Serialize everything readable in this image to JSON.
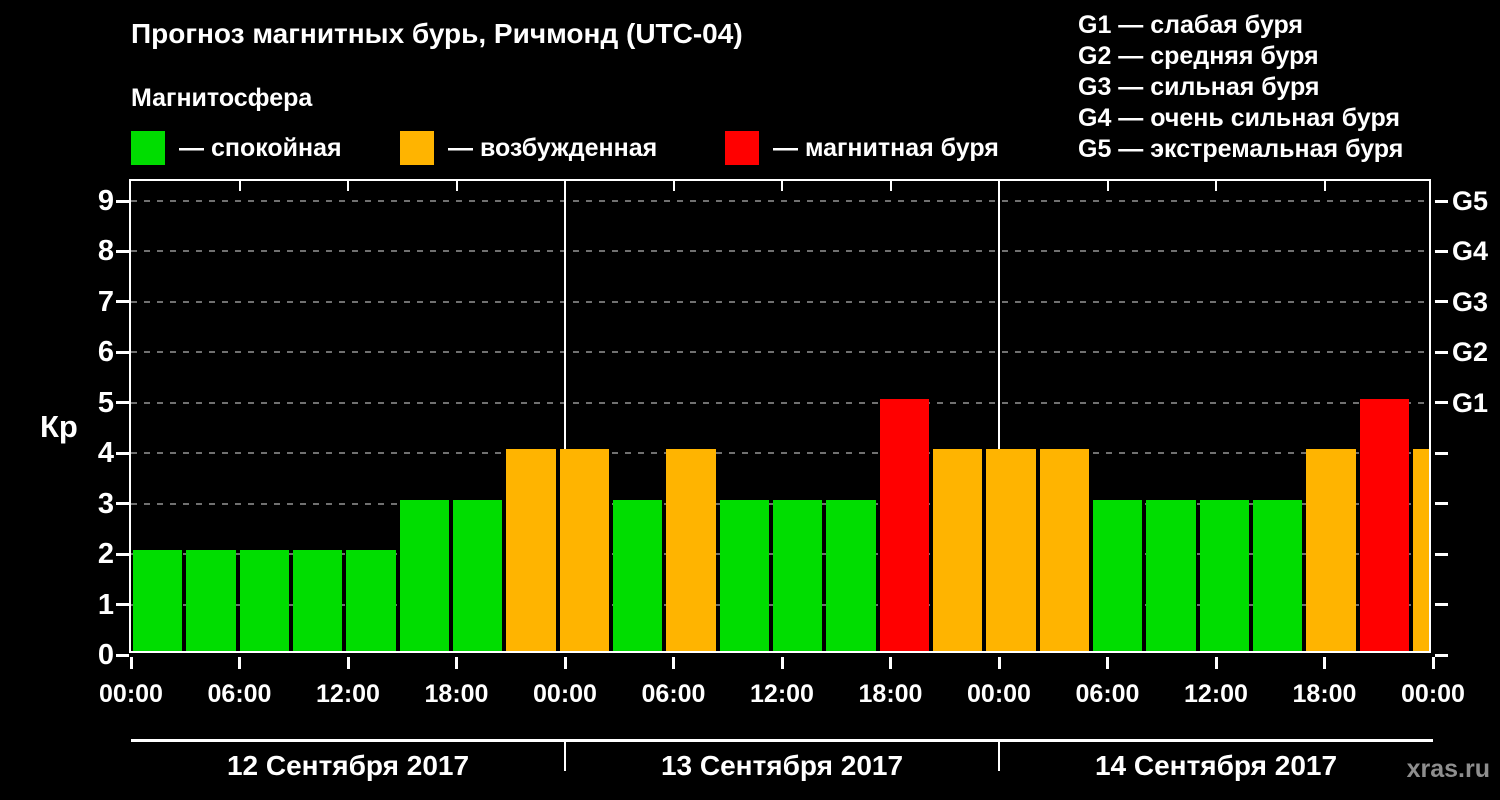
{
  "header": {
    "title": "Прогноз магнитных бурь, Ричмонд (UTC-04)",
    "subtitle": "Магнитосфера"
  },
  "legend": [
    {
      "name": "calm",
      "label": "— спокойная",
      "color": "#00dd00"
    },
    {
      "name": "excited",
      "label": "— возбужденная",
      "color": "#ffb400"
    },
    {
      "name": "storm",
      "label": "— магнитная буря",
      "color": "#ff0000"
    }
  ],
  "storm_scale_legend": [
    "G1 — слабая буря",
    "G2 — средняя буря",
    "G3 — сильная буря",
    "G4 — очень сильная буря",
    "G5 — экстремальная буря"
  ],
  "watermark": "xras.ru",
  "chart_data": {
    "type": "bar",
    "title": "Прогноз магнитных бурь, Ричмонд (UTC-04)",
    "ylabel": "Кр",
    "ylim": [
      0,
      9
    ],
    "yticks": [
      0,
      1,
      2,
      3,
      4,
      5,
      6,
      7,
      8,
      9
    ],
    "right_axis": [
      {
        "value": 5,
        "label": "G1"
      },
      {
        "value": 6,
        "label": "G2"
      },
      {
        "value": 7,
        "label": "G3"
      },
      {
        "value": 8,
        "label": "G4"
      },
      {
        "value": 9,
        "label": "G5"
      }
    ],
    "x_hours_range": [
      0,
      72
    ],
    "x_tick_interval_hours": 6,
    "x_tick_labels": [
      "00:00",
      "06:00",
      "12:00",
      "18:00",
      "00:00",
      "06:00",
      "12:00",
      "18:00",
      "00:00",
      "06:00",
      "12:00",
      "18:00",
      "00:00"
    ],
    "bar_interval_hours": 3,
    "days": [
      {
        "date_label": "12 Сентября 2017",
        "kp": [
          2,
          2,
          2,
          2,
          2,
          3,
          3,
          4
        ]
      },
      {
        "date_label": "13 Сентября 2017",
        "kp": [
          4,
          3,
          4,
          3,
          3,
          3,
          5,
          4
        ]
      },
      {
        "date_label": "14 Сентября 2017",
        "kp": [
          4,
          4,
          3,
          3,
          3,
          3,
          4,
          5
        ]
      }
    ],
    "next_day_partial_kp": 4,
    "colors": {
      "calm": "#00dd00",
      "excited": "#ffb400",
      "storm": "#ff0000",
      "grid": "#707070",
      "axis": "#ffffff"
    },
    "color_rule": {
      "calm_max_kp": 3,
      "excited_max_kp": 4
    },
    "grid": "horizontal-dashed",
    "legend_position": "top"
  }
}
